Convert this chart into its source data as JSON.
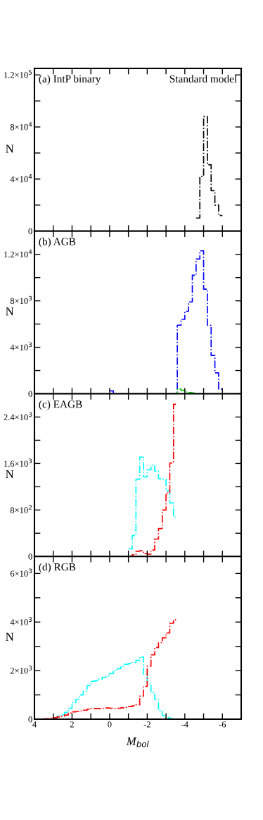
{
  "chart_data": [
    {
      "type": "histogram",
      "ylabel": "N",
      "annotations": [
        "(a) IntP binary",
        "Standard model"
      ],
      "xlim": [
        4,
        -7
      ],
      "xticks": [
        {
          "value": 4,
          "label": null
        },
        {
          "value": 3,
          "label": null
        },
        {
          "value": 2,
          "label": null
        },
        {
          "value": 1,
          "label": null
        },
        {
          "value": 0,
          "label": null
        },
        {
          "value": -1,
          "label": null
        },
        {
          "value": -2,
          "label": null
        },
        {
          "value": -3,
          "label": null
        },
        {
          "value": -4,
          "label": null
        },
        {
          "value": -5,
          "label": null
        },
        {
          "value": -6,
          "label": null
        },
        {
          "value": -7,
          "label": null
        }
      ],
      "ylim": [
        0,
        125000
      ],
      "yticks": [
        0,
        {
          "value": 20000,
          "label": null
        },
        {
          "value": 40000,
          "label": "4×10$^{4}$"
        },
        {
          "value": 60000,
          "label": null
        },
        {
          "value": 80000,
          "label": "8×10$^{4}$"
        },
        {
          "value": 100000,
          "label": null
        },
        {
          "value": 120000,
          "label": "1.2×10$^{5}$"
        }
      ],
      "tick_labels": "y",
      "line_style": "dashdot",
      "bins": [
        -4.6,
        -4.8,
        -5.0,
        -5.2,
        -5.4,
        -5.6,
        -5.8,
        -6.0
      ],
      "series": [
        {
          "color": "#000000",
          "values": [
            10000,
            42000,
            88000,
            51000,
            31000,
            20000,
            12000
          ]
        }
      ]
    },
    {
      "type": "histogram",
      "ylabel": "N",
      "annotations": [
        "(b) AGB"
      ],
      "xlim": [
        4,
        -7
      ],
      "xticks": [
        {
          "value": 4,
          "label": null
        },
        {
          "value": 3,
          "label": null
        },
        {
          "value": 2,
          "label": null
        },
        {
          "value": 1,
          "label": null
        },
        {
          "value": 0,
          "label": null
        },
        {
          "value": -1,
          "label": null
        },
        {
          "value": -2,
          "label": null
        },
        {
          "value": -3,
          "label": null
        },
        {
          "value": -4,
          "label": null
        },
        {
          "value": -5,
          "label": null
        },
        {
          "value": -6,
          "label": null
        },
        {
          "value": -7,
          "label": null
        }
      ],
      "ylim": [
        0,
        14000
      ],
      "yticks": [
        0,
        {
          "value": 2000,
          "label": null
        },
        {
          "value": 4000,
          "label": "4×10$^{3}$"
        },
        {
          "value": 6000,
          "label": null
        },
        {
          "value": 8000,
          "label": "8×10$^{3}$"
        },
        {
          "value": 10000,
          "label": null
        },
        {
          "value": 12000,
          "label": "1.2×10$^{4}$"
        }
      ],
      "tick_labels": "y",
      "line_style": "dashdot",
      "bins": [
        0,
        -0.2,
        -0.4,
        -0.6,
        -0.8,
        -1.0,
        -1.2,
        -1.4,
        -1.6,
        -1.8,
        -2.0,
        -2.2,
        -2.4,
        -2.6,
        -2.8,
        -3.0,
        -3.2,
        -3.4,
        -3.6,
        -3.8,
        -4.0,
        -4.2,
        -4.4,
        -4.6,
        -4.8,
        -5.0,
        -5.2,
        -5.4,
        -5.6,
        -5.8,
        -6.0
      ],
      "series": [
        {
          "color": "#0000ff",
          "values": [
            250,
            0,
            0,
            0,
            0,
            0,
            0,
            0,
            0,
            0,
            0,
            0,
            0,
            0,
            0,
            0,
            0,
            0,
            5900,
            6400,
            7100,
            7900,
            10200,
            11600,
            12300,
            9000,
            5900,
            3300,
            1800,
            400
          ]
        },
        {
          "color": "#00cc00",
          "values": [
            0,
            0,
            0,
            0,
            0,
            0,
            0,
            0,
            0,
            0,
            0,
            0,
            0,
            0,
            0,
            0,
            0,
            0,
            400,
            300,
            150,
            100,
            50,
            0,
            0,
            0,
            0,
            0,
            0,
            0
          ]
        }
      ]
    },
    {
      "type": "histogram",
      "ylabel": "N",
      "annotations": [
        "(c) EAGB"
      ],
      "xlim": [
        4,
        -7
      ],
      "xticks": [
        {
          "value": 4,
          "label": null
        },
        {
          "value": 3,
          "label": null
        },
        {
          "value": 2,
          "label": null
        },
        {
          "value": 1,
          "label": null
        },
        {
          "value": 0,
          "label": null
        },
        {
          "value": -1,
          "label": null
        },
        {
          "value": -2,
          "label": null
        },
        {
          "value": -3,
          "label": null
        },
        {
          "value": -4,
          "label": null
        },
        {
          "value": -5,
          "label": null
        },
        {
          "value": -6,
          "label": null
        },
        {
          "value": -7,
          "label": null
        }
      ],
      "ylim": [
        0,
        2800
      ],
      "yticks": [
        0,
        {
          "value": 400,
          "label": null
        },
        {
          "value": 800,
          "label": "8×10$^{2}$"
        },
        {
          "value": 1200,
          "label": null
        },
        {
          "value": 1600,
          "label": "1.6×10$^{3}$"
        },
        {
          "value": 2000,
          "label": null
        },
        {
          "value": 2400,
          "label": "2.4×10$^{3}$"
        }
      ],
      "tick_labels": "y",
      "line_style": "dashdot",
      "bins": [
        -1.0,
        -1.2,
        -1.4,
        -1.6,
        -1.8,
        -2.0,
        -2.2,
        -2.4,
        -2.6,
        -2.8,
        -3.0,
        -3.2,
        -3.4,
        -3.6
      ],
      "series": [
        {
          "color": "#00ffff",
          "values": [
            130,
            360,
            1330,
            1710,
            1370,
            1490,
            1570,
            1470,
            1340,
            1330,
            1130,
            920,
            680
          ]
        },
        {
          "color": "#ff0000",
          "values": [
            0,
            30,
            90,
            100,
            50,
            40,
            110,
            300,
            480,
            800,
            1090,
            1610,
            2620
          ]
        }
      ]
    },
    {
      "type": "histogram",
      "ylabel": "N",
      "xlabel": "M$_{bol}$",
      "annotations": [
        "(d) RGB"
      ],
      "xlim": [
        4,
        -7
      ],
      "xticks": [
        4,
        {
          "value": 3,
          "label": null
        },
        2,
        {
          "value": 1,
          "label": null
        },
        0,
        {
          "value": -1,
          "label": null
        },
        -2,
        {
          "value": -3,
          "label": null
        },
        -4,
        {
          "value": -5,
          "label": null
        },
        -6,
        {
          "value": -7,
          "label": null
        }
      ],
      "ylim": [
        0,
        6700
      ],
      "yticks": [
        0,
        {
          "value": 1000,
          "label": null
        },
        {
          "value": 2000,
          "label": "2×10$^{3}$"
        },
        {
          "value": 3000,
          "label": null
        },
        {
          "value": 4000,
          "label": "4×10$^{3}$"
        },
        {
          "value": 5000,
          "label": null
        },
        {
          "value": 6000,
          "label": "6×10$^{3}$"
        }
      ],
      "line_style": "dashdot",
      "bins": [
        3.6,
        3.4,
        3.2,
        3.0,
        2.8,
        2.6,
        2.4,
        2.2,
        2.0,
        1.8,
        1.6,
        1.4,
        1.2,
        1.0,
        0.8,
        0.6,
        0.4,
        0.2,
        0,
        -0.2,
        -0.4,
        -0.6,
        -0.8,
        -1.0,
        -1.2,
        -1.4,
        -1.6,
        -1.8,
        -2.0,
        -2.2,
        -2.4,
        -2.6,
        -2.8,
        -3.0,
        -3.2,
        -3.4,
        -3.6
      ],
      "series": [
        {
          "color": "#00ffff",
          "values": [
            0,
            10,
            30,
            60,
            120,
            180,
            280,
            450,
            680,
            820,
            1000,
            1150,
            1380,
            1560,
            1580,
            1650,
            1720,
            1780,
            1880,
            2000,
            2080,
            2180,
            2260,
            2290,
            2330,
            2420,
            2560,
            1850,
            1480,
            1100,
            800,
            350,
            150,
            60,
            20,
            0
          ]
        },
        {
          "color": "#ff0000",
          "values": [
            10,
            20,
            40,
            60,
            90,
            120,
            170,
            250,
            300,
            320,
            340,
            370,
            410,
            440,
            440,
            440,
            450,
            460,
            450,
            440,
            450,
            470,
            490,
            520,
            550,
            590,
            950,
            1350,
            2180,
            2650,
            2950,
            3150,
            3350,
            3550,
            3950,
            4100
          ]
        }
      ]
    }
  ]
}
